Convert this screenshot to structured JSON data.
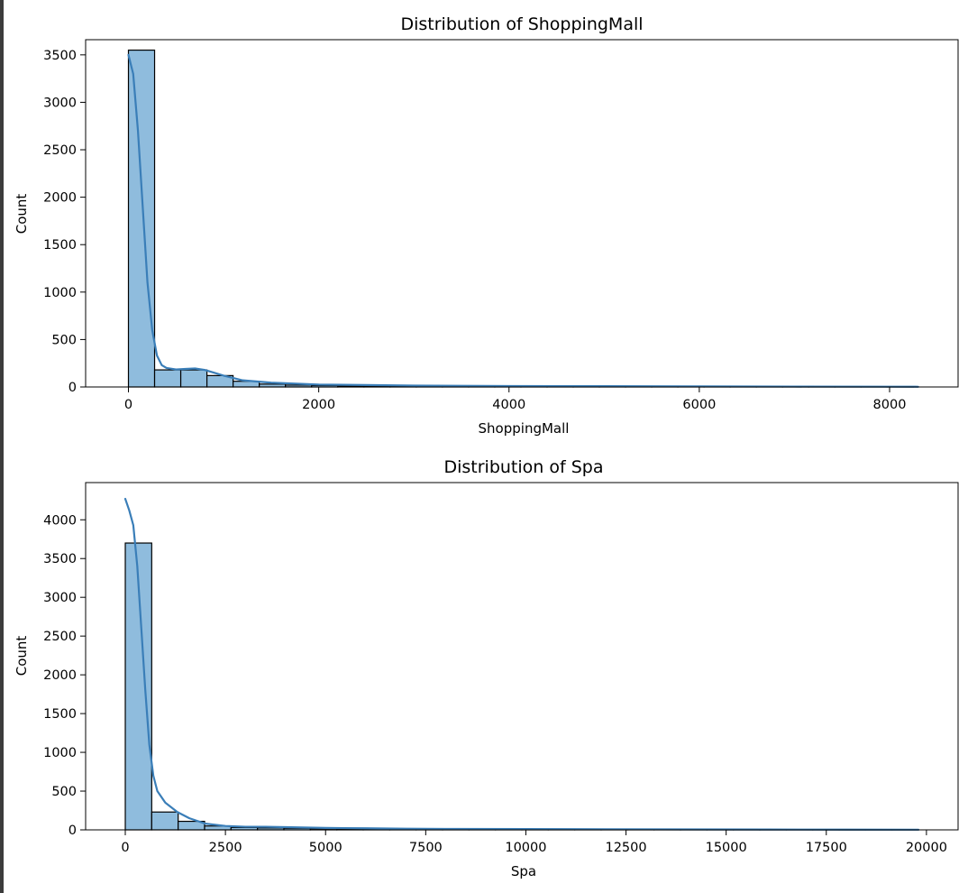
{
  "chart_data": [
    {
      "type": "bar",
      "title": "Distribution of ShoppingMall",
      "xlabel": "ShoppingMall",
      "ylabel": "Count",
      "xlim": [
        -450,
        8720
      ],
      "ylim": [
        0,
        3660
      ],
      "xticks": [
        0,
        2000,
        4000,
        6000,
        8000
      ],
      "xtick_labels": [
        "0",
        "2000",
        "4000",
        "6000",
        "8000"
      ],
      "yticks": [
        0,
        500,
        1000,
        1500,
        2000,
        2500,
        3000,
        3500
      ],
      "ytick_labels": [
        "0",
        "500",
        "1000",
        "1500",
        "2000",
        "2500",
        "3000",
        "3500"
      ],
      "bin_edges": [
        0,
        275,
        550,
        825,
        1100,
        1375,
        1650,
        1925,
        2200,
        2475,
        2750,
        3025,
        3300,
        3575,
        3850,
        4125,
        4400,
        4675,
        4950,
        5225,
        5500,
        5775,
        6050,
        6325,
        6600,
        6875,
        7150,
        7425,
        7700,
        7975,
        8250
      ],
      "values": [
        3550,
        180,
        180,
        120,
        60,
        30,
        20,
        15,
        10,
        8,
        6,
        5,
        4,
        3,
        3,
        2,
        2,
        2,
        1,
        1,
        1,
        1,
        1,
        1,
        1,
        1,
        1,
        1,
        1,
        1
      ],
      "kde": {
        "x": [
          0,
          50,
          100,
          150,
          200,
          250,
          300,
          350,
          400,
          500,
          600,
          700,
          800,
          900,
          1000,
          1200,
          1500,
          2000,
          2500,
          3000,
          4000,
          5000,
          6000,
          7000,
          8000,
          8300
        ],
        "y": [
          3500,
          3300,
          2700,
          1900,
          1100,
          600,
          330,
          230,
          200,
          185,
          190,
          195,
          180,
          150,
          120,
          70,
          45,
          25,
          20,
          15,
          10,
          8,
          6,
          4,
          3,
          2
        ]
      },
      "grid": false,
      "legend": "none",
      "bar_color": "#8fbcdd",
      "line_color": "#3a7eb8"
    },
    {
      "type": "bar",
      "title": "Distribution of Spa",
      "xlabel": "Spa",
      "ylabel": "Count",
      "xlim": [
        -990,
        20790
      ],
      "ylim": [
        0,
        4480
      ],
      "xticks": [
        0,
        2500,
        5000,
        7500,
        10000,
        12500,
        15000,
        17500,
        20000
      ],
      "xtick_labels": [
        "0",
        "2500",
        "5000",
        "7500",
        "10000",
        "12500",
        "15000",
        "17500",
        "20000"
      ],
      "yticks": [
        0,
        500,
        1000,
        1500,
        2000,
        2500,
        3000,
        3500,
        4000
      ],
      "ytick_labels": [
        "0",
        "500",
        "1000",
        "1500",
        "2000",
        "2500",
        "3000",
        "3500",
        "4000"
      ],
      "bin_edges": [
        0,
        660,
        1320,
        1980,
        2640,
        3300,
        3960,
        4620,
        5280,
        5940,
        6600,
        7260,
        7920,
        8580,
        9240,
        9900,
        10560,
        11220,
        11880,
        12540,
        13200,
        13860,
        14520,
        15180,
        15840,
        16500,
        17160,
        17820,
        18480,
        19140,
        19800
      ],
      "values": [
        3700,
        230,
        110,
        50,
        30,
        25,
        20,
        15,
        12,
        10,
        8,
        6,
        5,
        4,
        3,
        3,
        2,
        2,
        2,
        1,
        1,
        1,
        1,
        1,
        1,
        1,
        1,
        1,
        1,
        1
      ],
      "kde": {
        "x": [
          0,
          100,
          200,
          300,
          400,
          500,
          600,
          700,
          800,
          1000,
          1300,
          1600,
          2000,
          2500,
          3000,
          3500,
          4000,
          5000,
          6000,
          7000,
          8000,
          10000,
          12000,
          14000,
          16000,
          18000,
          19800
        ],
        "y": [
          4270,
          4120,
          3930,
          3400,
          2600,
          1800,
          1100,
          700,
          500,
          350,
          230,
          150,
          80,
          50,
          40,
          40,
          35,
          25,
          20,
          15,
          12,
          10,
          8,
          6,
          4,
          3,
          2
        ]
      },
      "grid": false,
      "legend": "none",
      "bar_color": "#8fbcdd",
      "line_color": "#3a7eb8"
    }
  ]
}
